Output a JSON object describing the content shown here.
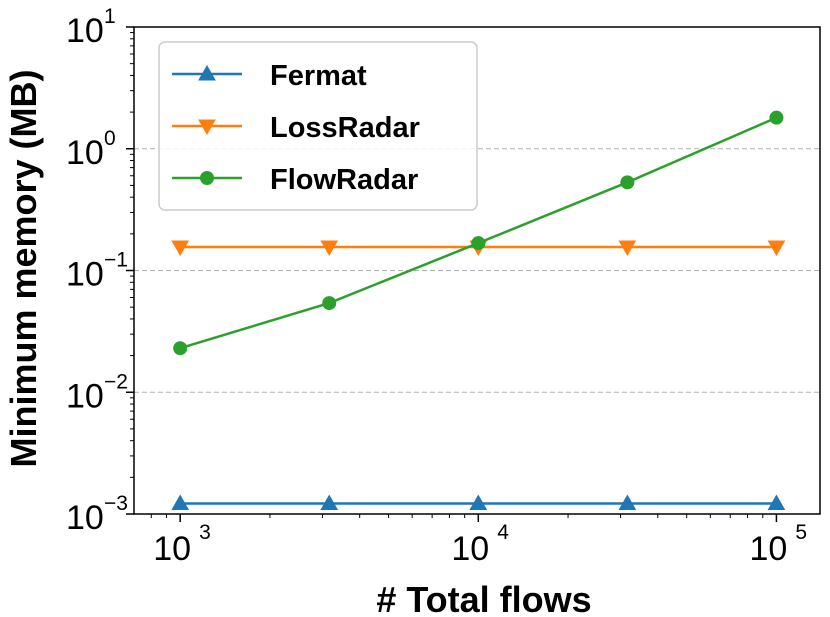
{
  "chart_data": {
    "type": "line",
    "xlabel": "# Total flows",
    "ylabel": "Minimum memory (MB)",
    "x_scale": "log",
    "y_scale": "log",
    "xlim": [
      700,
      140000
    ],
    "ylim": [
      0.001,
      10
    ],
    "x": [
      1000,
      3162,
      10000,
      31623,
      100000
    ],
    "x_ticks": [
      {
        "value": 1000,
        "base": "10",
        "exp": "3"
      },
      {
        "value": 10000,
        "base": "10",
        "exp": "4"
      },
      {
        "value": 100000,
        "base": "10",
        "exp": "5"
      }
    ],
    "y_ticks": [
      {
        "value": 0.001,
        "base": "10",
        "exp": "−3"
      },
      {
        "value": 0.01,
        "base": "10",
        "exp": "−2"
      },
      {
        "value": 0.1,
        "base": "10",
        "exp": "−1"
      },
      {
        "value": 1,
        "base": "10",
        "exp": "0"
      },
      {
        "value": 10,
        "base": "10",
        "exp": "1"
      }
    ],
    "grid": "y-major-dashed",
    "legend_position": "top-left",
    "series": [
      {
        "name": "Fermat",
        "color": "#1f77b4",
        "marker": "triangle-up",
        "values": [
          0.00122,
          0.00122,
          0.00122,
          0.00122,
          0.00122
        ]
      },
      {
        "name": "LossRadar",
        "color": "#ff7f0e",
        "marker": "triangle-down",
        "values": [
          0.156,
          0.156,
          0.156,
          0.156,
          0.156
        ]
      },
      {
        "name": "FlowRadar",
        "color": "#2ca02c",
        "marker": "circle",
        "values": [
          0.023,
          0.054,
          0.168,
          0.53,
          1.8
        ]
      }
    ]
  }
}
